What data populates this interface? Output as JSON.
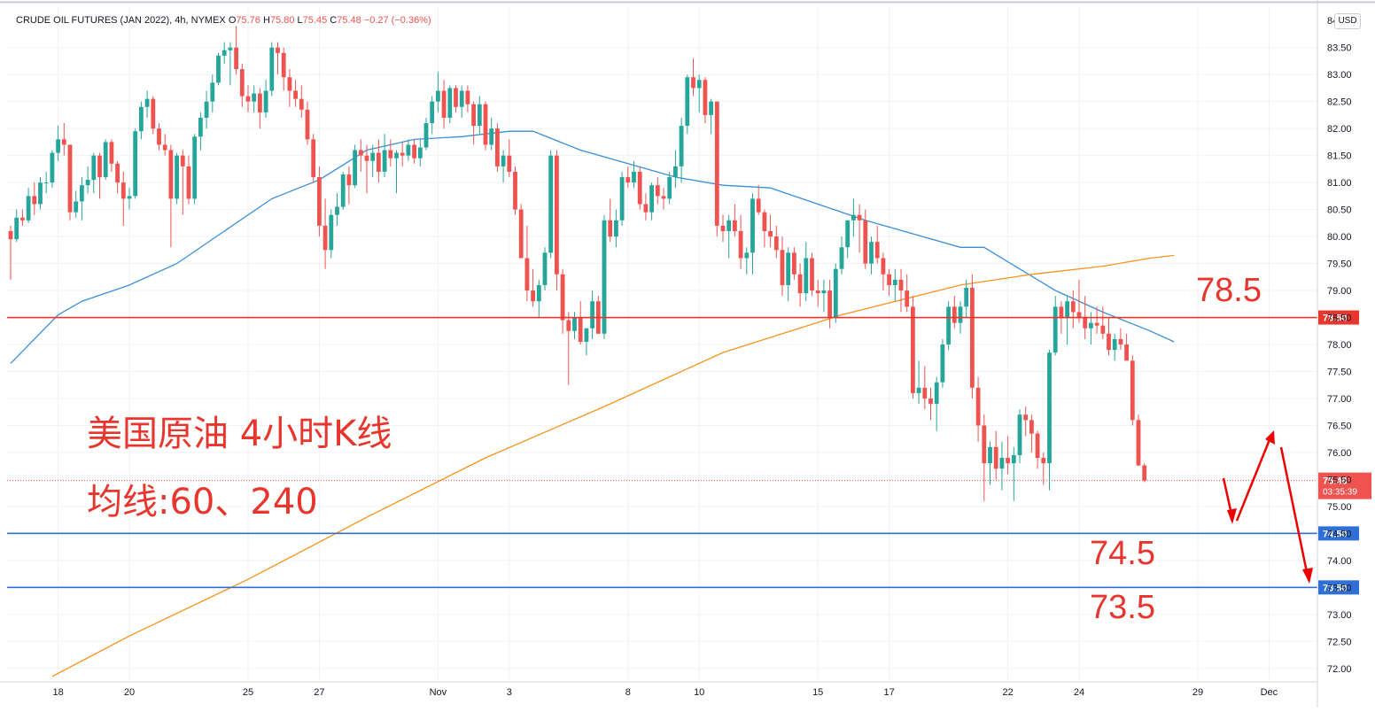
{
  "header": {
    "symbol": "CRUDE OIL FUTURES (JAN 2022), 4h, NYMEX",
    "o_label": "O",
    "o": "75.76",
    "h_label": "H",
    "h": "75.80",
    "l_label": "L",
    "l": "75.45",
    "c_label": "C",
    "c": "75.48",
    "change": "−0.27 (−0.36%)"
  },
  "currency_button": "USD",
  "annotations": {
    "title": "美国原油 4小时K线",
    "ma_note": "均线:60、240",
    "level_785": "78.5",
    "level_745": "74.5",
    "level_735": "73.5"
  },
  "colors": {
    "up": "#26a69a",
    "down": "#ef5350",
    "ma60": "#3a8fd9",
    "ma240": "#f7931e",
    "resistance": "#e8352d",
    "support": "#2f6fd6",
    "annotation": "#e8352d"
  },
  "chart_data": {
    "type": "candlestick",
    "timeframe": "4h",
    "ylim": [
      71.75,
      84.25
    ],
    "y_ticks": [
      72.0,
      72.5,
      73.0,
      73.5,
      74.0,
      74.5,
      75.0,
      75.5,
      76.0,
      76.5,
      77.0,
      77.5,
      78.0,
      78.5,
      79.0,
      79.5,
      80.0,
      80.5,
      81.0,
      81.5,
      82.0,
      82.5,
      83.0,
      83.5
    ],
    "x_ticks": [
      {
        "label": "18",
        "bar": 8
      },
      {
        "label": "20",
        "bar": 20
      },
      {
        "label": "25",
        "bar": 40
      },
      {
        "label": "27",
        "bar": 52
      },
      {
        "label": "Nov",
        "bar": 72
      },
      {
        "label": "3",
        "bar": 84
      },
      {
        "label": "8",
        "bar": 104
      },
      {
        "label": "10",
        "bar": 116
      },
      {
        "label": "15",
        "bar": 136
      },
      {
        "label": "17",
        "bar": 148
      },
      {
        "label": "22",
        "bar": 168
      },
      {
        "label": "24",
        "bar": 180
      },
      {
        "label": "29",
        "bar": 200
      },
      {
        "label": "Dec",
        "bar": 212
      }
    ],
    "horizontal_lines": [
      {
        "price": 78.5,
        "label": "78.50",
        "color": "#e8352d"
      },
      {
        "price": 74.5,
        "label": "74.50",
        "color": "#2f6fd6"
      },
      {
        "price": 73.5,
        "label": "73.50",
        "color": "#2f6fd6"
      }
    ],
    "last_price": {
      "price": 75.48,
      "label": "75.48",
      "countdown": "03:35:39"
    },
    "series": [
      {
        "name": "MA60",
        "color": "#3a8fd9",
        "points": [
          [
            0,
            77.65
          ],
          [
            4,
            78.1
          ],
          [
            8,
            78.55
          ],
          [
            12,
            78.8
          ],
          [
            20,
            79.1
          ],
          [
            28,
            79.5
          ],
          [
            36,
            80.1
          ],
          [
            44,
            80.7
          ],
          [
            52,
            81.05
          ],
          [
            60,
            81.6
          ],
          [
            68,
            81.8
          ],
          [
            76,
            81.85
          ],
          [
            84,
            81.95
          ],
          [
            88,
            81.95
          ],
          [
            96,
            81.6
          ],
          [
            104,
            81.35
          ],
          [
            112,
            81.1
          ],
          [
            120,
            80.95
          ],
          [
            128,
            80.9
          ],
          [
            136,
            80.6
          ],
          [
            144,
            80.3
          ],
          [
            152,
            80.05
          ],
          [
            160,
            79.8
          ],
          [
            164,
            79.8
          ],
          [
            170,
            79.4
          ],
          [
            176,
            79.0
          ],
          [
            184,
            78.6
          ],
          [
            192,
            78.25
          ],
          [
            196,
            78.05
          ]
        ]
      },
      {
        "name": "MA240",
        "color": "#f7931e",
        "points": [
          [
            7,
            71.85
          ],
          [
            20,
            72.6
          ],
          [
            40,
            73.65
          ],
          [
            60,
            74.8
          ],
          [
            80,
            75.9
          ],
          [
            100,
            76.85
          ],
          [
            120,
            77.85
          ],
          [
            140,
            78.55
          ],
          [
            160,
            79.1
          ],
          [
            172,
            79.3
          ],
          [
            184,
            79.45
          ],
          [
            192,
            79.6
          ],
          [
            196,
            79.65
          ]
        ]
      }
    ],
    "candles": [
      [
        80.1,
        80.2,
        79.2,
        79.95
      ],
      [
        79.95,
        80.5,
        79.9,
        80.35
      ],
      [
        80.35,
        80.5,
        80.2,
        80.3
      ],
      [
        80.3,
        80.9,
        80.25,
        80.75
      ],
      [
        80.75,
        81.0,
        80.4,
        80.6
      ],
      [
        80.6,
        81.1,
        80.5,
        81.0
      ],
      [
        81.0,
        81.2,
        80.8,
        81.0
      ],
      [
        81.0,
        81.6,
        80.9,
        81.55
      ],
      [
        81.55,
        82.05,
        81.4,
        81.8
      ],
      [
        81.8,
        82.1,
        81.5,
        81.7
      ],
      [
        81.7,
        81.7,
        80.3,
        80.45
      ],
      [
        80.45,
        80.85,
        80.35,
        80.65
      ],
      [
        80.65,
        81.1,
        80.3,
        80.95
      ],
      [
        80.95,
        81.3,
        80.8,
        81.05
      ],
      [
        81.05,
        81.55,
        80.8,
        81.5
      ],
      [
        81.5,
        81.55,
        80.7,
        81.1
      ],
      [
        81.1,
        81.8,
        81.05,
        81.75
      ],
      [
        81.75,
        81.8,
        81.2,
        81.35
      ],
      [
        81.35,
        81.4,
        80.8,
        81.0
      ],
      [
        81.0,
        81.2,
        80.2,
        80.7
      ],
      [
        80.7,
        80.9,
        80.5,
        80.75
      ],
      [
        80.75,
        82.0,
        80.7,
        81.95
      ],
      [
        81.95,
        82.5,
        81.8,
        82.4
      ],
      [
        82.4,
        82.7,
        82.2,
        82.55
      ],
      [
        82.55,
        82.6,
        81.9,
        82.0
      ],
      [
        82.0,
        82.1,
        81.6,
        81.7
      ],
      [
        81.7,
        81.9,
        81.5,
        81.6
      ],
      [
        81.6,
        81.7,
        79.8,
        80.7
      ],
      [
        80.7,
        81.55,
        80.6,
        81.5
      ],
      [
        81.5,
        81.6,
        80.4,
        81.3
      ],
      [
        81.3,
        81.5,
        80.6,
        80.7
      ],
      [
        80.7,
        81.9,
        80.6,
        81.85
      ],
      [
        81.85,
        82.3,
        81.6,
        82.2
      ],
      [
        82.2,
        82.7,
        82.0,
        82.5
      ],
      [
        82.5,
        83.0,
        82.3,
        82.85
      ],
      [
        82.85,
        83.4,
        82.8,
        83.35
      ],
      [
        83.35,
        83.6,
        83.2,
        83.45
      ],
      [
        83.45,
        83.6,
        82.8,
        83.5
      ],
      [
        83.5,
        83.9,
        83.0,
        83.1
      ],
      [
        83.1,
        83.2,
        82.4,
        82.6
      ],
      [
        82.6,
        82.8,
        82.3,
        82.5
      ],
      [
        82.5,
        82.8,
        82.3,
        82.65
      ],
      [
        82.65,
        82.75,
        82.0,
        82.3
      ],
      [
        82.3,
        82.9,
        82.2,
        82.7
      ],
      [
        82.7,
        83.6,
        82.6,
        83.5
      ],
      [
        83.5,
        83.6,
        83.0,
        83.4
      ],
      [
        83.4,
        83.5,
        82.7,
        82.95
      ],
      [
        82.95,
        83.1,
        82.4,
        82.7
      ],
      [
        82.7,
        82.9,
        82.4,
        82.55
      ],
      [
        82.55,
        82.8,
        82.2,
        82.35
      ],
      [
        82.35,
        82.5,
        81.7,
        81.8
      ],
      [
        81.8,
        81.9,
        81.0,
        81.1
      ],
      [
        81.1,
        81.3,
        80.0,
        80.2
      ],
      [
        80.2,
        80.7,
        79.4,
        79.75
      ],
      [
        79.75,
        80.5,
        79.6,
        80.4
      ],
      [
        80.4,
        80.8,
        80.2,
        80.55
      ],
      [
        80.55,
        81.2,
        80.5,
        81.15
      ],
      [
        81.15,
        81.3,
        80.6,
        80.95
      ],
      [
        80.95,
        81.7,
        80.9,
        81.6
      ],
      [
        81.6,
        81.8,
        81.2,
        81.5
      ],
      [
        81.5,
        81.7,
        80.8,
        81.4
      ],
      [
        81.4,
        81.7,
        81.1,
        81.55
      ],
      [
        81.55,
        81.8,
        81.0,
        81.2
      ],
      [
        81.2,
        81.9,
        81.1,
        81.6
      ],
      [
        81.6,
        81.8,
        81.3,
        81.45
      ],
      [
        81.45,
        81.6,
        80.8,
        81.55
      ],
      [
        81.55,
        81.75,
        81.3,
        81.5
      ],
      [
        81.5,
        81.8,
        81.4,
        81.7
      ],
      [
        81.7,
        81.8,
        81.35,
        81.45
      ],
      [
        81.45,
        81.8,
        81.3,
        81.65
      ],
      [
        81.65,
        82.2,
        81.6,
        82.1
      ],
      [
        82.1,
        82.6,
        81.9,
        82.5
      ],
      [
        82.5,
        83.05,
        82.3,
        82.7
      ],
      [
        82.7,
        82.9,
        82.0,
        82.2
      ],
      [
        82.2,
        82.8,
        82.1,
        82.75
      ],
      [
        82.75,
        82.8,
        82.3,
        82.4
      ],
      [
        82.4,
        82.8,
        82.2,
        82.7
      ],
      [
        82.7,
        82.8,
        82.3,
        82.45
      ],
      [
        82.45,
        82.5,
        81.7,
        82.05
      ],
      [
        82.05,
        82.6,
        81.9,
        82.45
      ],
      [
        82.45,
        82.5,
        81.6,
        81.7
      ],
      [
        81.7,
        82.2,
        81.6,
        82.0
      ],
      [
        82.0,
        82.1,
        81.2,
        81.3
      ],
      [
        81.3,
        81.6,
        81.0,
        81.5
      ],
      [
        81.5,
        81.8,
        81.1,
        81.2
      ],
      [
        81.2,
        81.3,
        80.4,
        80.5
      ],
      [
        80.5,
        80.6,
        79.6,
        79.6
      ],
      [
        79.6,
        80.2,
        78.8,
        79.0
      ],
      [
        79.0,
        79.4,
        78.7,
        78.8
      ],
      [
        78.8,
        79.2,
        78.5,
        79.1
      ],
      [
        79.1,
        79.8,
        79.0,
        79.7
      ],
      [
        79.7,
        81.6,
        79.6,
        81.5
      ],
      [
        81.5,
        81.6,
        79.0,
        79.3
      ],
      [
        79.3,
        79.4,
        78.2,
        78.45
      ],
      [
        78.45,
        78.6,
        77.25,
        78.25
      ],
      [
        78.25,
        78.6,
        78.1,
        78.5
      ],
      [
        78.5,
        78.8,
        78.0,
        78.05
      ],
      [
        78.05,
        78.3,
        77.8,
        78.3
      ],
      [
        78.3,
        79.0,
        78.1,
        78.8
      ],
      [
        78.8,
        78.9,
        78.2,
        78.2
      ],
      [
        78.2,
        80.4,
        78.1,
        80.3
      ],
      [
        80.3,
        80.7,
        79.9,
        80.0
      ],
      [
        80.0,
        80.5,
        79.8,
        80.3
      ],
      [
        80.3,
        81.2,
        80.2,
        81.1
      ],
      [
        81.1,
        81.3,
        80.9,
        81.0
      ],
      [
        81.0,
        81.4,
        80.9,
        81.2
      ],
      [
        81.2,
        81.3,
        80.5,
        80.6
      ],
      [
        80.6,
        80.8,
        80.3,
        80.45
      ],
      [
        80.45,
        81.0,
        80.3,
        80.95
      ],
      [
        80.95,
        81.1,
        80.6,
        80.75
      ],
      [
        80.75,
        80.9,
        80.5,
        80.7
      ],
      [
        80.7,
        81.2,
        80.6,
        81.1
      ],
      [
        81.1,
        81.6,
        80.9,
        81.3
      ],
      [
        81.3,
        82.2,
        81.0,
        82.05
      ],
      [
        82.05,
        83.0,
        81.9,
        82.95
      ],
      [
        82.95,
        83.3,
        82.6,
        82.75
      ],
      [
        82.75,
        83.0,
        82.3,
        82.9
      ],
      [
        82.9,
        82.95,
        82.1,
        82.25
      ],
      [
        82.25,
        82.55,
        81.9,
        82.5
      ],
      [
        82.5,
        82.5,
        80.0,
        80.2
      ],
      [
        80.2,
        80.4,
        79.9,
        80.1
      ],
      [
        80.1,
        80.4,
        79.6,
        80.3
      ],
      [
        80.3,
        80.6,
        80.0,
        80.1
      ],
      [
        80.1,
        80.4,
        79.4,
        79.6
      ],
      [
        79.6,
        79.8,
        79.3,
        79.7
      ],
      [
        79.7,
        80.8,
        79.3,
        80.7
      ],
      [
        80.7,
        80.95,
        80.4,
        80.45
      ],
      [
        80.45,
        80.5,
        79.8,
        80.1
      ],
      [
        80.1,
        80.4,
        79.8,
        80.0
      ],
      [
        80.0,
        80.2,
        79.6,
        79.75
      ],
      [
        79.75,
        80.0,
        78.9,
        79.1
      ],
      [
        79.1,
        79.8,
        78.8,
        79.7
      ],
      [
        79.7,
        79.8,
        79.2,
        79.3
      ],
      [
        79.3,
        79.5,
        78.7,
        78.95
      ],
      [
        78.95,
        79.9,
        78.8,
        79.6
      ],
      [
        79.6,
        79.7,
        78.9,
        79.0
      ],
      [
        79.0,
        79.2,
        78.7,
        78.95
      ],
      [
        78.95,
        79.2,
        78.6,
        79.0
      ],
      [
        79.0,
        79.2,
        78.3,
        78.5
      ],
      [
        78.5,
        79.5,
        78.4,
        79.4
      ],
      [
        79.4,
        80.0,
        79.3,
        79.8
      ],
      [
        79.8,
        80.3,
        79.6,
        80.3
      ],
      [
        80.3,
        80.7,
        80.0,
        80.4
      ],
      [
        80.4,
        80.6,
        79.7,
        80.3
      ],
      [
        80.3,
        80.5,
        79.4,
        79.5
      ],
      [
        79.5,
        80.0,
        79.3,
        79.9
      ],
      [
        79.9,
        80.2,
        79.5,
        79.6
      ],
      [
        79.6,
        79.7,
        79.0,
        79.3
      ],
      [
        79.3,
        79.4,
        78.9,
        79.1
      ],
      [
        79.1,
        79.4,
        78.8,
        79.2
      ],
      [
        79.2,
        79.4,
        78.6,
        79.0
      ],
      [
        79.0,
        79.3,
        78.6,
        78.7
      ],
      [
        78.7,
        78.9,
        77.0,
        77.1
      ],
      [
        77.1,
        77.7,
        76.9,
        77.2
      ],
      [
        77.2,
        77.6,
        76.8,
        77.0
      ],
      [
        77.0,
        77.2,
        76.6,
        76.9
      ],
      [
        76.9,
        77.4,
        76.4,
        77.3
      ],
      [
        77.3,
        78.1,
        77.2,
        78.0
      ],
      [
        78.0,
        78.8,
        77.9,
        78.7
      ],
      [
        78.7,
        78.9,
        78.3,
        78.4
      ],
      [
        78.4,
        78.8,
        78.2,
        78.7
      ],
      [
        78.7,
        79.2,
        78.5,
        79.05
      ],
      [
        79.05,
        79.3,
        77.0,
        77.2
      ],
      [
        77.2,
        77.4,
        76.2,
        76.5
      ],
      [
        76.5,
        76.7,
        75.1,
        75.8
      ],
      [
        75.8,
        76.2,
        75.4,
        76.1
      ],
      [
        76.1,
        76.4,
        75.5,
        75.7
      ],
      [
        75.7,
        76.2,
        75.3,
        75.9
      ],
      [
        75.9,
        76.3,
        75.6,
        75.8
      ],
      [
        75.8,
        76.1,
        75.1,
        75.95
      ],
      [
        75.95,
        76.8,
        75.8,
        76.7
      ],
      [
        76.7,
        76.85,
        76.3,
        76.6
      ],
      [
        76.6,
        76.7,
        76.0,
        76.35
      ],
      [
        76.35,
        76.4,
        75.7,
        75.9
      ],
      [
        75.9,
        76.0,
        75.4,
        75.8
      ],
      [
        75.8,
        77.9,
        75.3,
        77.85
      ],
      [
        77.85,
        78.9,
        77.8,
        78.7
      ],
      [
        78.7,
        78.8,
        78.2,
        78.5
      ],
      [
        78.5,
        78.9,
        78.0,
        78.8
      ],
      [
        78.8,
        79.0,
        78.3,
        78.6
      ],
      [
        78.6,
        79.2,
        78.4,
        78.5
      ],
      [
        78.5,
        78.9,
        78.1,
        78.3
      ],
      [
        78.3,
        78.6,
        78.0,
        78.4
      ],
      [
        78.4,
        78.7,
        78.2,
        78.35
      ],
      [
        78.35,
        78.7,
        78.1,
        78.2
      ],
      [
        78.2,
        78.5,
        77.8,
        77.9
      ],
      [
        77.9,
        78.2,
        77.7,
        78.1
      ],
      [
        78.1,
        78.3,
        77.9,
        78.0
      ],
      [
        78.0,
        78.2,
        77.7,
        77.7
      ],
      [
        77.7,
        77.8,
        76.5,
        76.6
      ],
      [
        76.6,
        76.7,
        75.75,
        75.76
      ],
      [
        75.76,
        75.8,
        75.45,
        75.48
      ]
    ]
  }
}
